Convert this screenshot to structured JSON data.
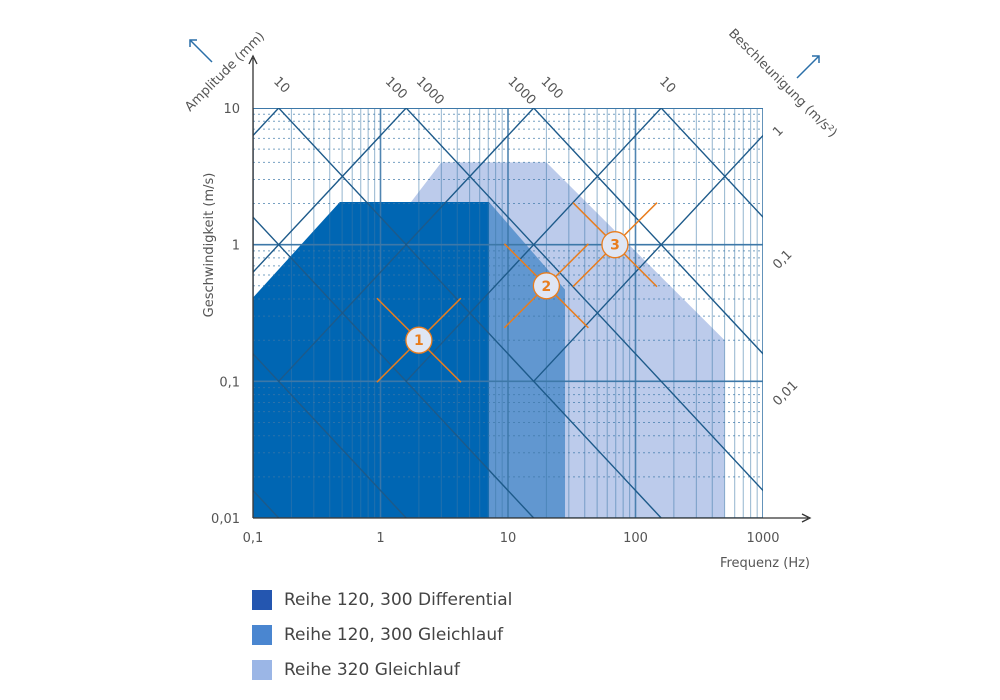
{
  "chart_data": {
    "type": "area",
    "xlabel": "Frequenz (Hz)",
    "ylabel": "Geschwindigkeit (m/s)",
    "top_axis_label": "Amplitude (mm)",
    "right_axis_label": "Beschleunigung (m/s²)",
    "x_scale": "log",
    "y_scale": "log",
    "xlim": [
      0.1,
      1000
    ],
    "ylim": [
      0.01,
      10
    ],
    "x_ticks": [
      {
        "v": 0.1,
        "label": "0,1"
      },
      {
        "v": 1,
        "label": "1"
      },
      {
        "v": 10,
        "label": "10"
      },
      {
        "v": 100,
        "label": "100"
      },
      {
        "v": 1000,
        "label": "1000"
      }
    ],
    "y_ticks": [
      {
        "v": 10,
        "label": "10"
      },
      {
        "v": 1,
        "label": "1"
      },
      {
        "v": 0.1,
        "label": "0,1"
      },
      {
        "v": 0.01,
        "label": "0,01"
      }
    ],
    "top_diagonal_labels": [
      {
        "f": 0.16,
        "label": "10"
      },
      {
        "f": 1.2,
        "label": "100"
      },
      {
        "f": 2.1,
        "label": "1000"
      },
      {
        "f": 11,
        "label": "1000"
      },
      {
        "f": 20,
        "label": "100"
      },
      {
        "f": 170,
        "label": "10"
      }
    ],
    "right_diagonal_labels": [
      {
        "v": 7,
        "label": "1"
      },
      {
        "v": 0.75,
        "label": "0,1"
      },
      {
        "v": 0.075,
        "label": "0,01"
      }
    ],
    "grid": true,
    "legend_position": "bottom-left",
    "series": [
      {
        "name": "Reihe 320 Gleichlauf",
        "color": "#9bb6e6",
        "fill": "#bccbeb",
        "points": [
          [
            1.7,
            2
          ],
          [
            3,
            4
          ],
          [
            20,
            4
          ],
          [
            500,
            0.2
          ],
          [
            500,
            0.01
          ],
          [
            1.7,
            0.01
          ]
        ]
      },
      {
        "name": "Reihe 120, 300 Gleichlauf",
        "color": "#4a86d0",
        "fill": "#6197d0",
        "points": [
          [
            4,
            2.05
          ],
          [
            7.1,
            2.05
          ],
          [
            28,
            0.47
          ],
          [
            28,
            0.01
          ],
          [
            4,
            0.01
          ]
        ]
      },
      {
        "name": "Reihe 120, 300 Differential",
        "color": "#2456b0",
        "fill": "#0066b3",
        "points": [
          [
            0.1,
            0.41
          ],
          [
            0.48,
            2.05
          ],
          [
            7.1,
            2.05
          ],
          [
            7.1,
            0.01
          ],
          [
            0.1,
            0.01
          ]
        ]
      }
    ],
    "markers": [
      {
        "label": "1",
        "f": 2,
        "v": 0.2
      },
      {
        "label": "2",
        "f": 20,
        "v": 0.5
      },
      {
        "label": "3",
        "f": 69,
        "v": 1.0
      }
    ],
    "colors": {
      "grid": "#3d78a8",
      "diagonal": "#1d5a8a",
      "marker": "#e87d1e",
      "marker_fill": "#dfe6f4"
    }
  }
}
